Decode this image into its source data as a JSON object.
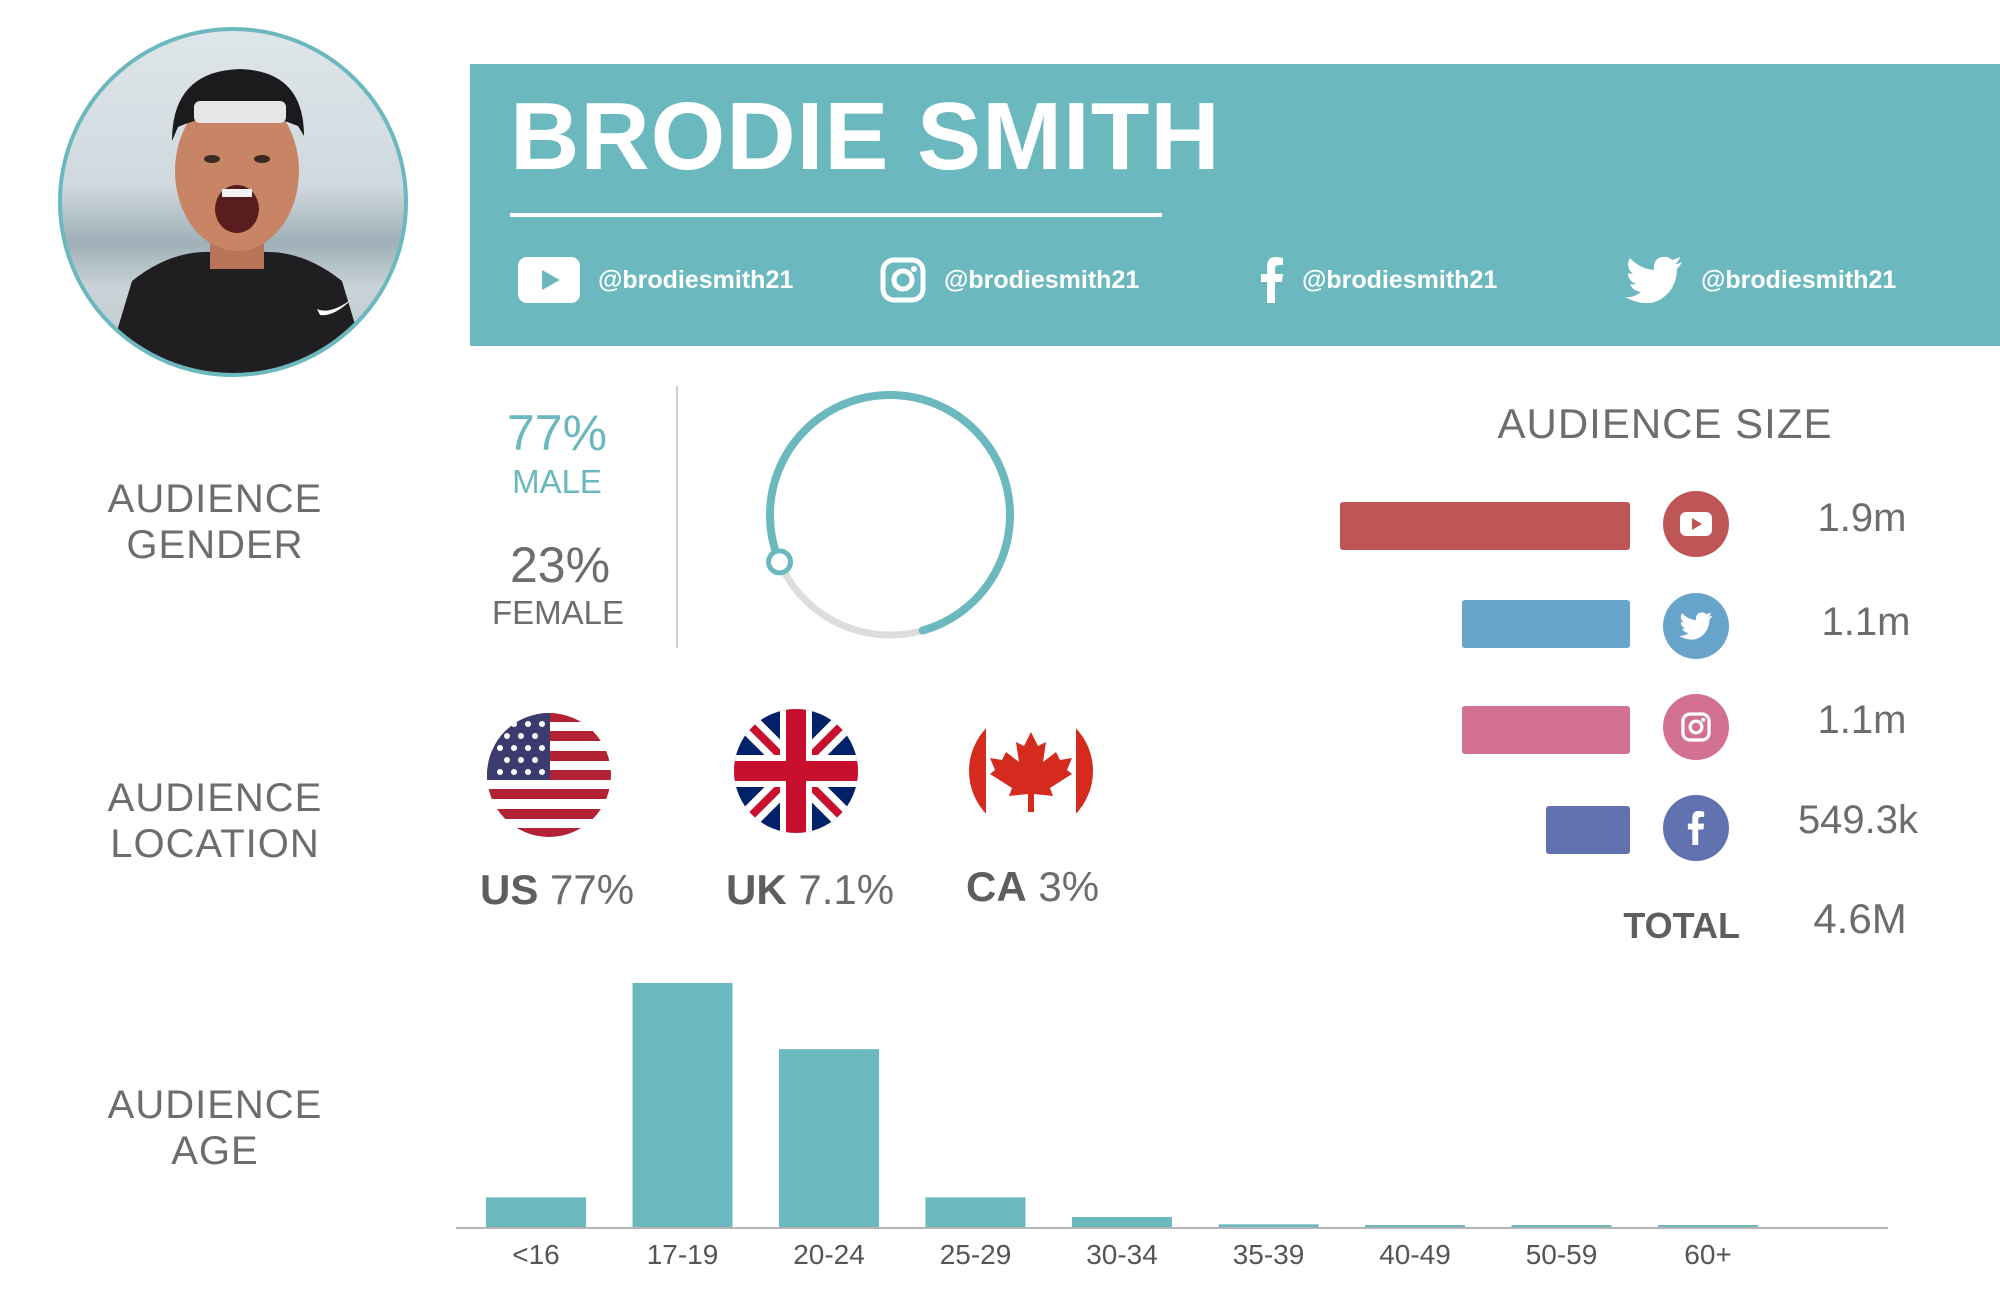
{
  "profile": {
    "name": "BRODIE SMITH"
  },
  "socials": [
    {
      "platform": "YouTube",
      "icon": "youtube-icon",
      "handle": "@brodiesmith21"
    },
    {
      "platform": "Instagram",
      "icon": "instagram-icon",
      "handle": "@brodiesmith21"
    },
    {
      "platform": "Facebook",
      "icon": "facebook-icon",
      "handle": "@brodiesmith21"
    },
    {
      "platform": "Twitter",
      "icon": "twitter-icon",
      "handle": "@brodiesmith21"
    }
  ],
  "gender": {
    "label_line1": "AUDIENCE",
    "label_line2": "GENDER",
    "male_pct": "77%",
    "male_label": "MALE",
    "female_pct": "23%",
    "female_label": "FEMALE",
    "male_fraction": 0.77
  },
  "location": {
    "label_line1": "AUDIENCE",
    "label_line2": "LOCATION",
    "countries": [
      {
        "code": "US",
        "pct": "77%",
        "flag": "us-flag-icon"
      },
      {
        "code": "UK",
        "pct": "7.1%",
        "flag": "uk-flag-icon"
      },
      {
        "code": "CA",
        "pct": "3%",
        "flag": "ca-flag-icon"
      }
    ]
  },
  "audience_size": {
    "title": "AUDIENCE SIZE",
    "platforms": [
      {
        "platform": "YouTube",
        "icon": "youtube-icon",
        "value_label": "1.9m",
        "value": 1.9,
        "color": "#be5656"
      },
      {
        "platform": "Twitter",
        "icon": "twitter-icon",
        "value_label": "1.1m",
        "value": 1.1,
        "color": "#67a3cb"
      },
      {
        "platform": "Instagram",
        "icon": "instagram-icon",
        "value_label": "1.1m",
        "value": 1.1,
        "color": "#d27090"
      },
      {
        "platform": "Facebook",
        "icon": "facebook-icon",
        "value_label": "549.3k",
        "value": 0.5493,
        "color": "#6272b1"
      }
    ],
    "total_label": "TOTAL",
    "total_value": "4.6M"
  },
  "age": {
    "label_line1": "AUDIENCE",
    "label_line2": "AGE"
  },
  "colors": {
    "accent": "#6bb9be",
    "ring_track": "#dddddd",
    "text": "#6d6d6d"
  },
  "chart_data": {
    "type": "bar",
    "categories": [
      "<16",
      "17-19",
      "20-24",
      "25-29",
      "30-34",
      "35-39",
      "40-49",
      "50-59",
      "60+"
    ],
    "values": [
      12.5,
      100,
      73,
      12.5,
      4.5,
      1.5,
      1,
      0.5,
      0.3
    ],
    "title": "",
    "xlabel": "",
    "ylabel": "",
    "ylim": [
      0,
      100
    ],
    "grid": false,
    "color": "#6bb9be"
  }
}
